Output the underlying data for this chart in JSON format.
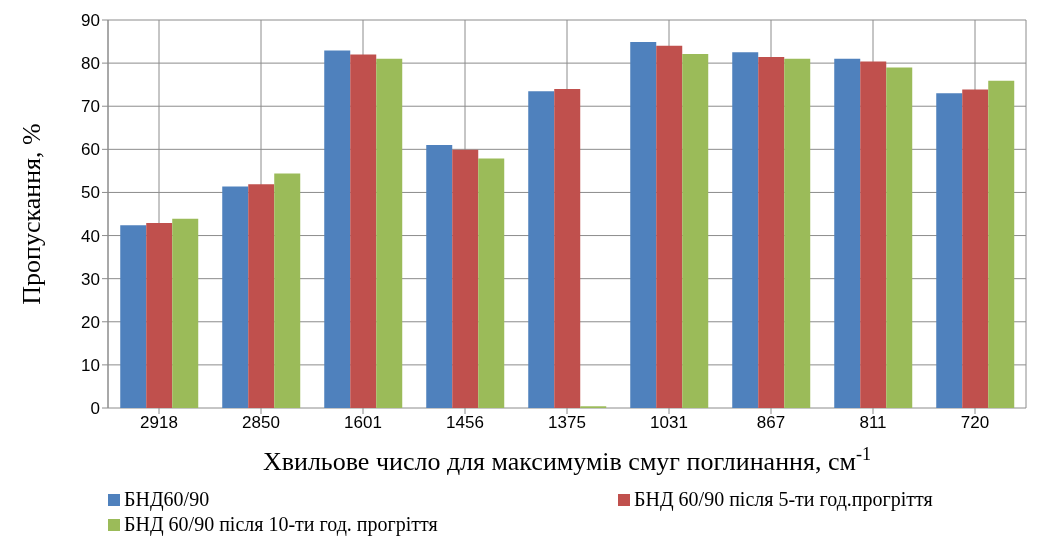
{
  "chart_data": {
    "type": "bar",
    "xlabel": "Хвильове число для максимумів смуг поглинання, см$^{-1}$",
    "ylabel": "Пропускання, %",
    "categories": [
      "2918",
      "2850",
      "1601",
      "1456",
      "1375",
      "1031",
      "867",
      "811",
      "720"
    ],
    "series": [
      {
        "name": "БНД60/90",
        "color": "#4f81bd",
        "values": [
          42.4,
          51.4,
          82.9,
          61.0,
          73.5,
          84.9,
          82.5,
          81.0,
          73.0
        ]
      },
      {
        "name": "БНД 60/90 після 5-ти год.прогріття",
        "color": "#c0504d",
        "values": [
          42.9,
          51.9,
          82.0,
          59.9,
          74.0,
          84.0,
          81.4,
          80.4,
          73.9
        ]
      },
      {
        "name": "БНД 60/90 після 10-ти год. прогріття",
        "color": "#9bbb59",
        "values": [
          43.9,
          54.4,
          81.0,
          57.9,
          0.4,
          82.1,
          81.0,
          79.0,
          75.9
        ]
      }
    ],
    "ylim": [
      0,
      90
    ],
    "yticks": [
      0,
      10,
      20,
      30,
      40,
      50,
      60,
      70,
      80,
      90
    ],
    "grid": true,
    "legend": "bottom"
  }
}
